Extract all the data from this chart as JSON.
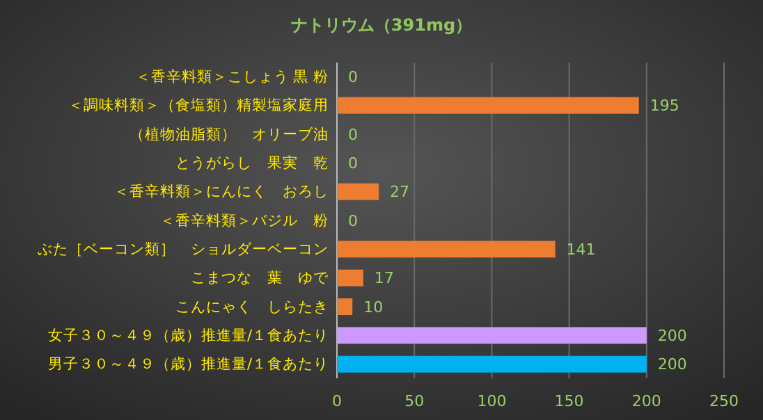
{
  "chart_data": {
    "type": "bar",
    "orientation": "horizontal",
    "title": "ナトリウム（391mg）",
    "categories": [
      "＜香辛料類＞こしょう 黒 粉",
      "＜調味料類＞（食塩類）精製塩家庭用",
      "（植物油脂類）　オリーブ油",
      "とうがらし　果実　乾",
      "＜香辛料類＞にんにく　おろし",
      "＜香辛料類＞バジル　粉",
      "ぶた［ベーコン類］　ショルダーベーコン",
      "こまつな　葉　ゆで",
      "こんにゃく　しらたき",
      "女子３０～４９（歳）推進量/１食あたり",
      "男子３０～４９（歳）推進量/１食あたり"
    ],
    "values": [
      0,
      195,
      0,
      0,
      27,
      0,
      141,
      17,
      10,
      200,
      200
    ],
    "colors": [
      "#ed7d31",
      "#ed7d31",
      "#ed7d31",
      "#ed7d31",
      "#ed7d31",
      "#ed7d31",
      "#ed7d31",
      "#ed7d31",
      "#ed7d31",
      "#cc99ff",
      "#00b0f0"
    ],
    "xlim": [
      0,
      250
    ],
    "xticks": [
      0,
      50,
      100,
      150,
      200,
      250
    ],
    "grid": "x",
    "data_labels": true
  }
}
